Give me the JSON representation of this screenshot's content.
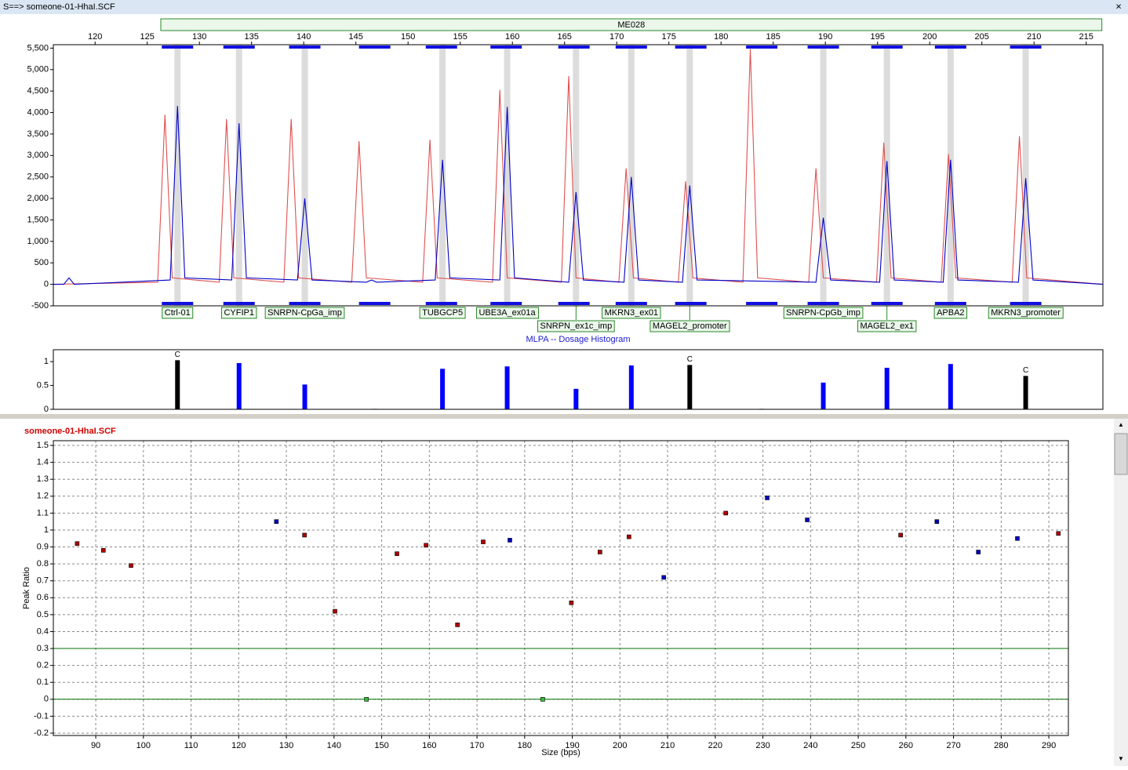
{
  "window": {
    "title": "S==> someone-01-HhaI.SCF",
    "close": "×"
  },
  "chart_data": [
    {
      "type": "line",
      "range": {
        "label": "ME028",
        "from": 126.3,
        "to": 216.5
      },
      "xlim": [
        116,
        216.6
      ],
      "xticks": [
        120,
        125,
        130,
        135,
        140,
        145,
        150,
        155,
        160,
        165,
        170,
        175,
        180,
        185,
        190,
        195,
        200,
        205,
        210,
        215
      ],
      "ylim": [
        -500,
        5580
      ],
      "yticks": [
        {
          "value": 5500,
          "label": "5,500"
        },
        {
          "value": 5000,
          "label": "5,000"
        },
        {
          "value": 4500,
          "label": "4,500"
        },
        {
          "value": 4000,
          "label": "4,000"
        },
        {
          "value": 3500,
          "label": "3,500"
        },
        {
          "value": 3000,
          "label": "3,000"
        },
        {
          "value": 2500,
          "label": "2,500"
        },
        {
          "value": 2000,
          "label": "2,000"
        },
        {
          "value": 1500,
          "label": "1,500"
        },
        {
          "value": 1000,
          "label": "1,000"
        },
        500,
        0,
        -500
      ],
      "series": [
        {
          "color": "#e05050",
          "x": [
            116,
            126.0,
            126.7,
            127.4,
            131.9,
            132.6,
            133.3,
            138.1,
            138.8,
            139.5,
            144.6,
            145.3,
            146.0,
            151.4,
            152.1,
            152.8,
            158.1,
            158.8,
            159.5,
            164.7,
            165.4,
            166.1,
            170.2,
            170.9,
            171.6,
            175.9,
            176.6,
            177.3,
            182.1,
            182.8,
            183.5,
            188.4,
            189.1,
            189.8,
            194.9,
            195.6,
            196.3,
            201.1,
            201.8,
            202.5,
            207.9,
            208.6,
            209.3,
            216.6
          ],
          "values": [
            0,
            50,
            3950,
            150,
            50,
            3850,
            150,
            50,
            3850,
            150,
            50,
            3330,
            150,
            50,
            3370,
            150,
            50,
            4530,
            150,
            50,
            4850,
            150,
            50,
            2700,
            150,
            50,
            2400,
            150,
            50,
            5480,
            150,
            50,
            2700,
            150,
            50,
            3300,
            150,
            50,
            3030,
            150,
            50,
            3450,
            150,
            0
          ]
        },
        {
          "color": "#0000c8",
          "x": [
            116,
            117.0,
            117.5,
            118.0,
            127.2,
            127.9,
            128.6,
            133.1,
            133.8,
            134.5,
            139.4,
            140.1,
            140.8,
            146.0,
            146.5,
            147.0,
            152.6,
            153.3,
            154.0,
            158.8,
            159.5,
            160.2,
            165.4,
            166.1,
            166.8,
            170.7,
            171.4,
            172.1,
            176.3,
            177.0,
            177.7,
            189.1,
            189.8,
            190.5,
            195.2,
            195.9,
            196.6,
            201.3,
            202.0,
            202.7,
            208.5,
            209.2,
            209.9,
            216.6
          ],
          "values": [
            0,
            0,
            150,
            0,
            100,
            4150,
            150,
            100,
            3750,
            150,
            100,
            2000,
            100,
            50,
            100,
            50,
            100,
            2900,
            150,
            100,
            4130,
            150,
            50,
            2150,
            100,
            50,
            2500,
            100,
            50,
            2300,
            100,
            50,
            1550,
            100,
            50,
            2870,
            100,
            50,
            2900,
            100,
            50,
            2470,
            100,
            0
          ]
        }
      ],
      "bins": [
        127.9,
        133.8,
        140.1,
        146.8,
        153.2,
        159.4,
        165.9,
        171.4,
        177.1,
        183.9,
        189.8,
        195.9,
        202.0,
        209.2
      ],
      "probes": [
        {
          "name": "Ctrl-01",
          "size": 127.9
        },
        {
          "name": "CYFIP1",
          "size": 133.8
        },
        {
          "name": "SNRPN-CpGa_imp",
          "size": 140.1
        },
        {
          "name": "TUBGCP5",
          "size": 153.3
        },
        {
          "name": "UBE3A_ex01a",
          "size": 159.5
        },
        {
          "name": "SNRPN_ex1c_imp",
          "size": 166.1
        },
        {
          "name": "MKRN3_ex01",
          "size": 171.4
        },
        {
          "name": "MAGEL2_promoter",
          "size": 177.0
        },
        {
          "name": "SNRPN-CpGb_imp",
          "size": 189.8
        },
        {
          "name": "MAGEL2_ex1",
          "size": 195.9
        },
        {
          "name": "APBA2",
          "size": 202.0
        },
        {
          "name": "MKRN3_promoter",
          "size": 209.2
        }
      ]
    },
    {
      "type": "bar",
      "title": "MLPA -- Dosage Histogram",
      "xlim": [
        116,
        216.6
      ],
      "ylim": [
        0,
        1.25
      ],
      "yticks": [
        0,
        0.5,
        1
      ],
      "x": [
        127.9,
        133.8,
        140.1,
        146.8,
        153.3,
        159.5,
        166.1,
        171.4,
        177.0,
        183.9,
        189.8,
        195.9,
        202.0,
        209.2
      ],
      "values": [
        1.03,
        0.97,
        0.52,
        0.01,
        0.85,
        0.9,
        0.43,
        0.92,
        0.93,
        0.01,
        0.56,
        0.87,
        0.95,
        0.7
      ],
      "colors": [
        "#000000",
        "#0000ff",
        "#0000ff",
        "#0000ff",
        "#0000ff",
        "#0000ff",
        "#0000ff",
        "#0000ff",
        "#000000",
        "#0000ff",
        "#0000ff",
        "#0000ff",
        "#0000ff",
        "#000000"
      ],
      "markers": [
        "C",
        null,
        null,
        null,
        null,
        null,
        null,
        null,
        "C",
        null,
        null,
        null,
        null,
        "C"
      ]
    },
    {
      "type": "scatter",
      "title": "someone-01-HhaI.SCF",
      "xlabel": "Size (bps)",
      "ylabel": "Peak Ratio",
      "grid": true,
      "xlim": [
        81.1,
        294.1
      ],
      "xticks": [
        90,
        100,
        110,
        120,
        130,
        140,
        150,
        160,
        170,
        180,
        190,
        200,
        210,
        220,
        230,
        240,
        250,
        260,
        270,
        280,
        290
      ],
      "ylim": [
        -0.214,
        1.528
      ],
      "yticks": [
        1.5,
        1.4,
        1.3,
        1.2,
        1.1,
        1,
        0.9,
        0.8,
        0.7,
        0.6,
        0.5,
        0.4,
        0.3,
        0.2,
        0.1,
        0,
        -0.1,
        -0.2
      ],
      "reference_lines": {
        "values": [
          0.3,
          0
        ],
        "color": "#007000"
      },
      "series": [
        {
          "color": "#b00000",
          "x": [
            86.1,
            91.6,
            97.4,
            133.8,
            140.2,
            153.2,
            159.3,
            165.9,
            171.3,
            189.8,
            195.8,
            201.9,
            222.2,
            258.9,
            292.0
          ],
          "values": [
            0.92,
            0.88,
            0.79,
            0.97,
            0.52,
            0.86,
            0.91,
            0.44,
            0.93,
            0.57,
            0.87,
            0.96,
            1.1,
            0.97,
            0.98
          ]
        },
        {
          "color": "#0000c0",
          "x": [
            127.9,
            176.9,
            209.2,
            230.9,
            239.3,
            266.5,
            275.2,
            283.4
          ],
          "values": [
            1.05,
            0.94,
            0.72,
            1.19,
            1.06,
            1.05,
            0.87,
            0.95
          ]
        },
        {
          "color": "#30c030",
          "x": [
            146.8,
            183.8
          ],
          "values": [
            0,
            0
          ]
        }
      ]
    }
  ]
}
